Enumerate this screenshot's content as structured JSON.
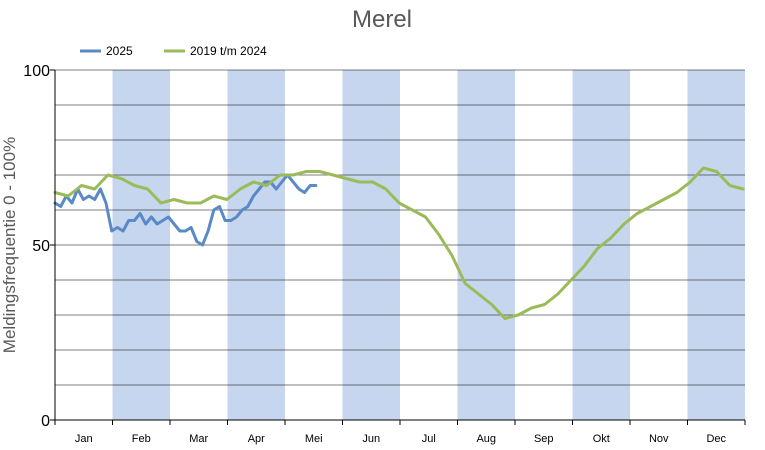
{
  "chart_data": {
    "type": "line",
    "title": "Merel",
    "ylabel": "Meldingsfrequentie 0 - 100%",
    "xlabel": "",
    "ylim": [
      0,
      100
    ],
    "yticks": [
      "0",
      "50",
      "100"
    ],
    "months": [
      "Jan",
      "Feb",
      "Mar",
      "Apr",
      "Mei",
      "Jun",
      "Jul",
      "Aug",
      "Sep",
      "Okt",
      "Nov",
      "Dec"
    ],
    "shaded_months": [
      "Feb",
      "Apr",
      "Jun",
      "Aug",
      "Okt",
      "Dec"
    ],
    "grid": true,
    "legend_position": "top-left",
    "x_unit": "day of year",
    "colors": {
      "shade": "#c6d6ee",
      "grid": "#000000",
      "axis": "#000000"
    },
    "series": [
      {
        "name": "2025",
        "color": "#5a8ac6",
        "x": [
          1,
          4,
          7,
          10,
          13,
          16,
          19,
          22,
          25,
          28,
          31,
          34,
          37,
          40,
          43,
          46,
          49,
          52,
          55,
          58,
          61,
          64,
          67,
          70,
          73,
          76,
          79,
          82,
          85,
          88,
          91,
          94,
          97,
          100,
          103,
          106,
          109,
          112,
          115,
          118,
          121,
          124,
          127,
          130,
          133,
          136,
          139
        ],
        "values": [
          62,
          61,
          64,
          62,
          66,
          63,
          64,
          63,
          66,
          62,
          54,
          55,
          54,
          57,
          57,
          59,
          56,
          58,
          56,
          57,
          58,
          56,
          54,
          54,
          55,
          51,
          50,
          54,
          60,
          61,
          57,
          57,
          58,
          60,
          61,
          64,
          66,
          68,
          68,
          66,
          68,
          70,
          68,
          66,
          65,
          67,
          67
        ]
      },
      {
        "name": "2019 t/m 2024",
        "color": "#9bbb59",
        "x": [
          1,
          8,
          15,
          22,
          29,
          36,
          43,
          50,
          57,
          64,
          71,
          78,
          85,
          92,
          99,
          106,
          113,
          120,
          127,
          134,
          141,
          148,
          155,
          162,
          169,
          176,
          183,
          190,
          197,
          204,
          211,
          218,
          225,
          232,
          239,
          246,
          253,
          260,
          267,
          274,
          281,
          288,
          295,
          302,
          309,
          316,
          323,
          330,
          337,
          344,
          351,
          358,
          365
        ],
        "values": [
          65,
          64,
          67,
          66,
          70,
          69,
          67,
          66,
          62,
          63,
          62,
          62,
          64,
          63,
          66,
          68,
          67,
          70,
          70,
          71,
          71,
          70,
          69,
          68,
          68,
          66,
          62,
          60,
          58,
          53,
          47,
          39,
          36,
          33,
          29,
          30,
          32,
          33,
          36,
          40,
          44,
          49,
          52,
          56,
          59,
          61,
          63,
          65,
          68,
          72,
          71,
          67,
          66
        ]
      }
    ]
  }
}
